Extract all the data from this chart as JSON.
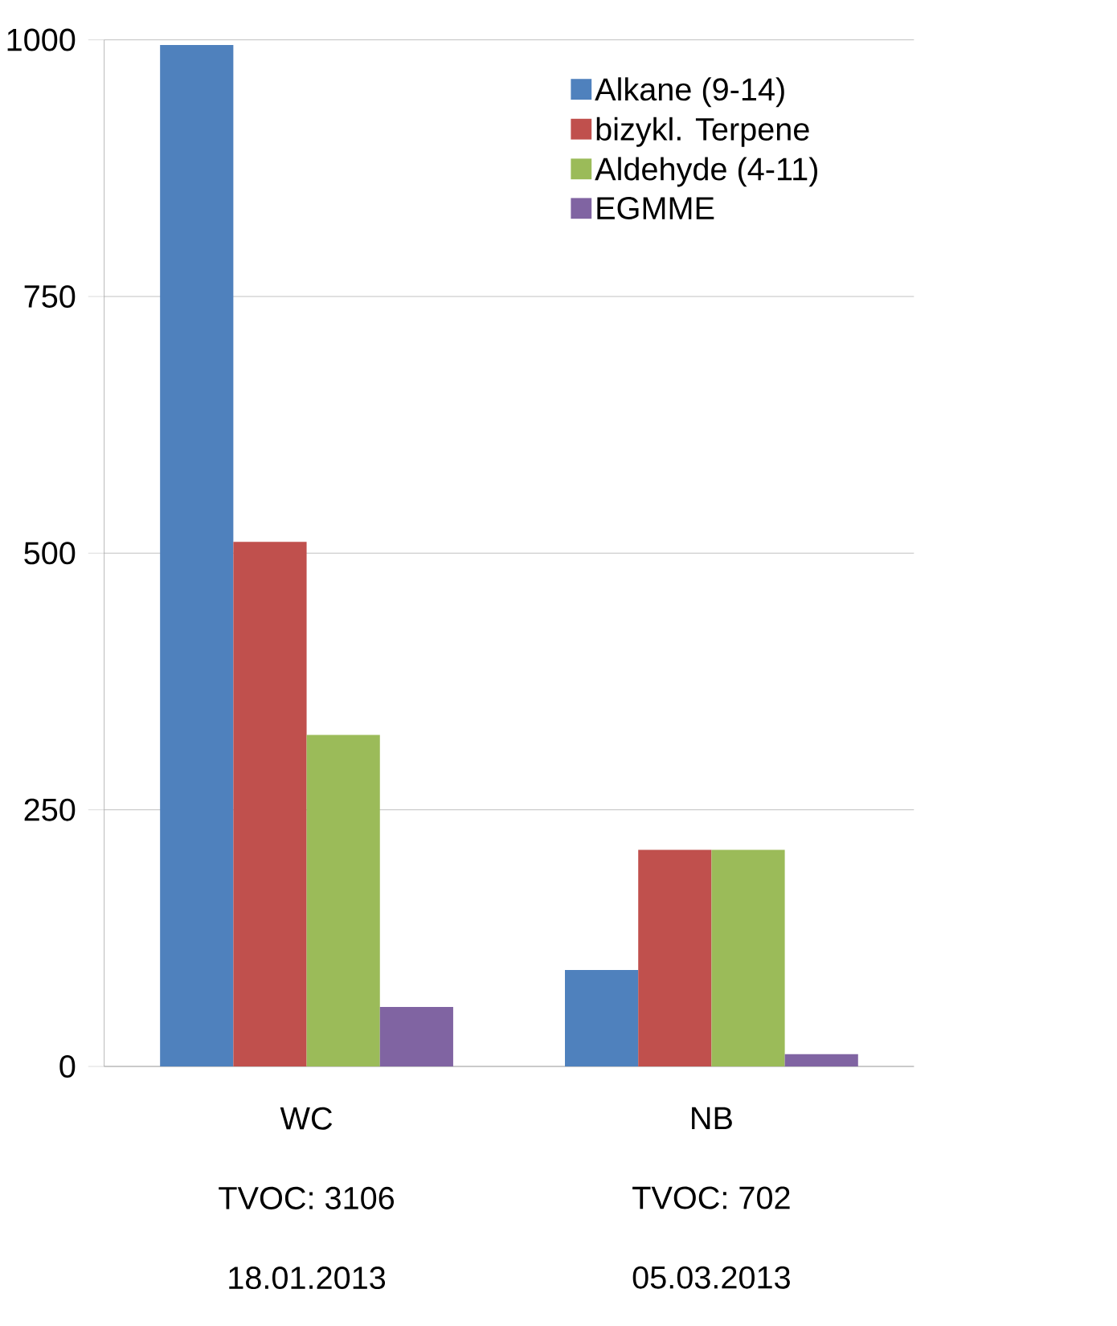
{
  "chart_data": {
    "type": "bar",
    "categories": [
      "WC",
      "NB"
    ],
    "series": [
      {
        "name": "Alkane (9-14)",
        "color": "#4f81bd",
        "values": [
          995,
          94
        ]
      },
      {
        "name": "bizykl. Terpene",
        "color": "#c0504d",
        "values": [
          511,
          211
        ]
      },
      {
        "name": "Aldehyde (4-11)",
        "color": "#9bbb59",
        "values": [
          323,
          211
        ]
      },
      {
        "name": "EGMME",
        "color": "#8064a2",
        "values": [
          58,
          12
        ]
      }
    ],
    "annotations": [
      "TVOC: 3106",
      "18.01.2013",
      "TVOC: 702",
      "05.03.2013"
    ],
    "ylim": [
      0,
      1000
    ],
    "yticks": [
      0,
      250,
      500,
      750,
      1000
    ],
    "grid": "y",
    "legend": "top right"
  }
}
